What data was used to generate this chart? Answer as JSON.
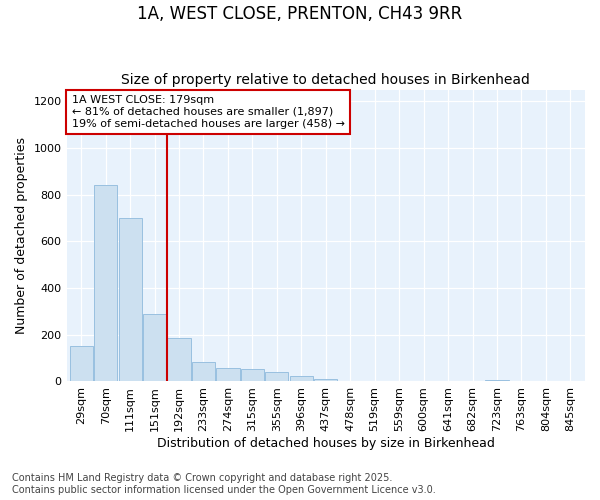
{
  "title_line1": "1A, WEST CLOSE, PRENTON, CH43 9RR",
  "title_line2": "Size of property relative to detached houses in Birkenhead",
  "xlabel": "Distribution of detached houses by size in Birkenhead",
  "ylabel": "Number of detached properties",
  "annotation_title": "1A WEST CLOSE: 179sqm",
  "annotation_line2": "← 81% of detached houses are smaller (1,897)",
  "annotation_line3": "19% of semi-detached houses are larger (458) →",
  "footnote1": "Contains HM Land Registry data © Crown copyright and database right 2025.",
  "footnote2": "Contains public sector information licensed under the Open Government Licence v3.0.",
  "categories": [
    "29sqm",
    "70sqm",
    "111sqm",
    "151sqm",
    "192sqm",
    "233sqm",
    "274sqm",
    "315sqm",
    "355sqm",
    "396sqm",
    "437sqm",
    "478sqm",
    "519sqm",
    "559sqm",
    "600sqm",
    "641sqm",
    "682sqm",
    "723sqm",
    "763sqm",
    "804sqm",
    "845sqm"
  ],
  "values": [
    150,
    840,
    700,
    290,
    185,
    85,
    58,
    55,
    42,
    25,
    12,
    0,
    0,
    0,
    0,
    0,
    0,
    8,
    0,
    0,
    0
  ],
  "bar_color": "#cce0f0",
  "bar_edge_color": "#99c0e0",
  "vline_color": "#cc0000",
  "annotation_box_color": "#cc0000",
  "annotation_box_facecolor": "white",
  "background_color": "#e8f2fc",
  "ylim": [
    0,
    1250
  ],
  "yticks": [
    0,
    200,
    400,
    600,
    800,
    1000,
    1200
  ],
  "title_fontsize": 12,
  "subtitle_fontsize": 10,
  "axis_fontsize": 9,
  "tick_fontsize": 8,
  "annotation_fontsize": 8,
  "footnote_fontsize": 7
}
